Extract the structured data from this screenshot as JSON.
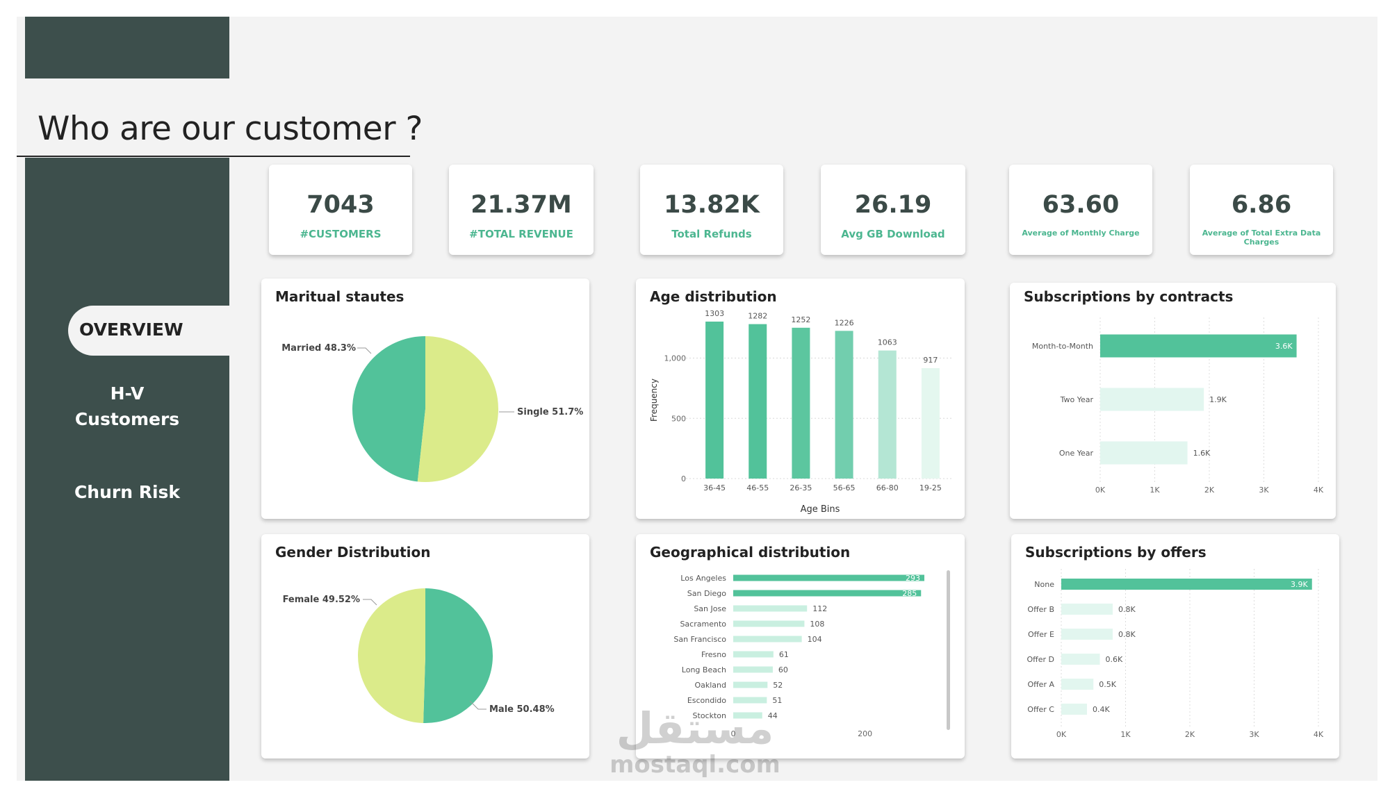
{
  "page": {
    "title": "Who are our customer ?"
  },
  "colors": {
    "sidebar": "#3d4f4c",
    "accent": "#4cb690",
    "pie_yellow": "#dbeb8a",
    "pie_green": "#52c29a"
  },
  "nav": {
    "overview": "OVERVIEW",
    "hv_line1": "H-V",
    "hv_line2": "Customers",
    "churn": "Churn Risk"
  },
  "kpis": [
    {
      "value": "7043",
      "label": "#CUSTOMERS"
    },
    {
      "value": "21.37M",
      "label": "#TOTAL REVENUE"
    },
    {
      "value": "13.82K",
      "label": "Total Refunds"
    },
    {
      "value": "26.19",
      "label": "Avg GB Download"
    },
    {
      "value": "63.60",
      "label": "Average of Monthly Charge"
    },
    {
      "value": "6.86",
      "label": "Average of Total Extra Data Charges"
    }
  ],
  "cards": {
    "marital": "Maritual stautes",
    "age": "Age distribution",
    "contracts": "Subscriptions by contracts",
    "gender": "Gender Distribution",
    "geo": "Geographical distribution",
    "offers": "Subscriptions by offers"
  },
  "watermark": {
    "line1": "مستقل",
    "line2": "mostaql.com"
  },
  "chart_data": [
    {
      "type": "pie",
      "title": "Maritual stautes",
      "categories": [
        "Married",
        "Single"
      ],
      "values": [
        48.3,
        51.7
      ],
      "labels": [
        "Married 48.3%",
        "Single 51.7%"
      ],
      "colors": [
        "#52c29a",
        "#dbeb8a"
      ]
    },
    {
      "type": "bar",
      "title": "Age distribution",
      "categories": [
        "36-45",
        "46-55",
        "26-35",
        "56-65",
        "66-80",
        "19-25"
      ],
      "values": [
        1303,
        1282,
        1252,
        1226,
        1063,
        917
      ],
      "xlabel": "Age Bins",
      "ylabel": "Frequency",
      "yticks": [
        "0",
        "500",
        "1,000"
      ],
      "ylim": [
        0,
        1303
      ],
      "colors": [
        "#52c29a",
        "#52c29a",
        "#5cc69f",
        "#72ceae",
        "#b4e6d4",
        "#e4f7ef"
      ],
      "grid": true
    },
    {
      "type": "bar",
      "orientation": "horizontal",
      "title": "Subscriptions by contracts",
      "categories": [
        "Month-to-Month",
        "Two Year",
        "One Year"
      ],
      "values": [
        3.6,
        1.9,
        1.6
      ],
      "labels": [
        "3.6K",
        "1.9K",
        "1.6K"
      ],
      "xticks": [
        "0K",
        "1K",
        "2K",
        "3K",
        "4K"
      ],
      "xlim": [
        0,
        4
      ],
      "colors": [
        "#52c29a",
        "#e2f6ef",
        "#e2f6ef"
      ],
      "grid": true
    },
    {
      "type": "pie",
      "title": "Gender Distribution",
      "categories": [
        "Male",
        "Female"
      ],
      "values": [
        50.48,
        49.52
      ],
      "labels": [
        "Male 50.48%",
        "Female 49.52%"
      ],
      "colors": [
        "#52c29a",
        "#dbeb8a"
      ]
    },
    {
      "type": "bar",
      "orientation": "horizontal",
      "title": "Geographical distribution",
      "categories": [
        "Los Angeles",
        "San Diego",
        "San Jose",
        "Sacramento",
        "San Francisco",
        "Fresno",
        "Long Beach",
        "Oakland",
        "Escondido",
        "Stockton"
      ],
      "values": [
        293,
        285,
        112,
        108,
        104,
        61,
        60,
        52,
        51,
        44
      ],
      "labels": [
        "293",
        "285",
        "112",
        "108",
        "104",
        "61",
        "60",
        "52",
        "51",
        "44"
      ],
      "xticks": [
        "0",
        "200"
      ],
      "xlim": [
        0,
        290
      ],
      "colors": [
        "#52c29a",
        "#52c29a",
        "#c9efe0",
        "#c9efe0",
        "#c9efe0",
        "#c9efe0",
        "#c9efe0",
        "#c9efe0",
        "#c9efe0",
        "#c9efe0"
      ]
    },
    {
      "type": "bar",
      "orientation": "horizontal",
      "title": "Subscriptions by offers",
      "categories": [
        "None",
        "Offer B",
        "Offer E",
        "Offer D",
        "Offer A",
        "Offer C"
      ],
      "values": [
        3.9,
        0.8,
        0.8,
        0.6,
        0.5,
        0.4
      ],
      "labels": [
        "3.9K",
        "0.8K",
        "0.8K",
        "0.6K",
        "0.5K",
        "0.4K"
      ],
      "xticks": [
        "0K",
        "1K",
        "2K",
        "3K",
        "4K"
      ],
      "xlim": [
        0,
        4
      ],
      "colors": [
        "#52c29a",
        "#e2f6ef",
        "#e2f6ef",
        "#e2f6ef",
        "#e2f6ef",
        "#e2f6ef"
      ],
      "grid": true
    }
  ]
}
